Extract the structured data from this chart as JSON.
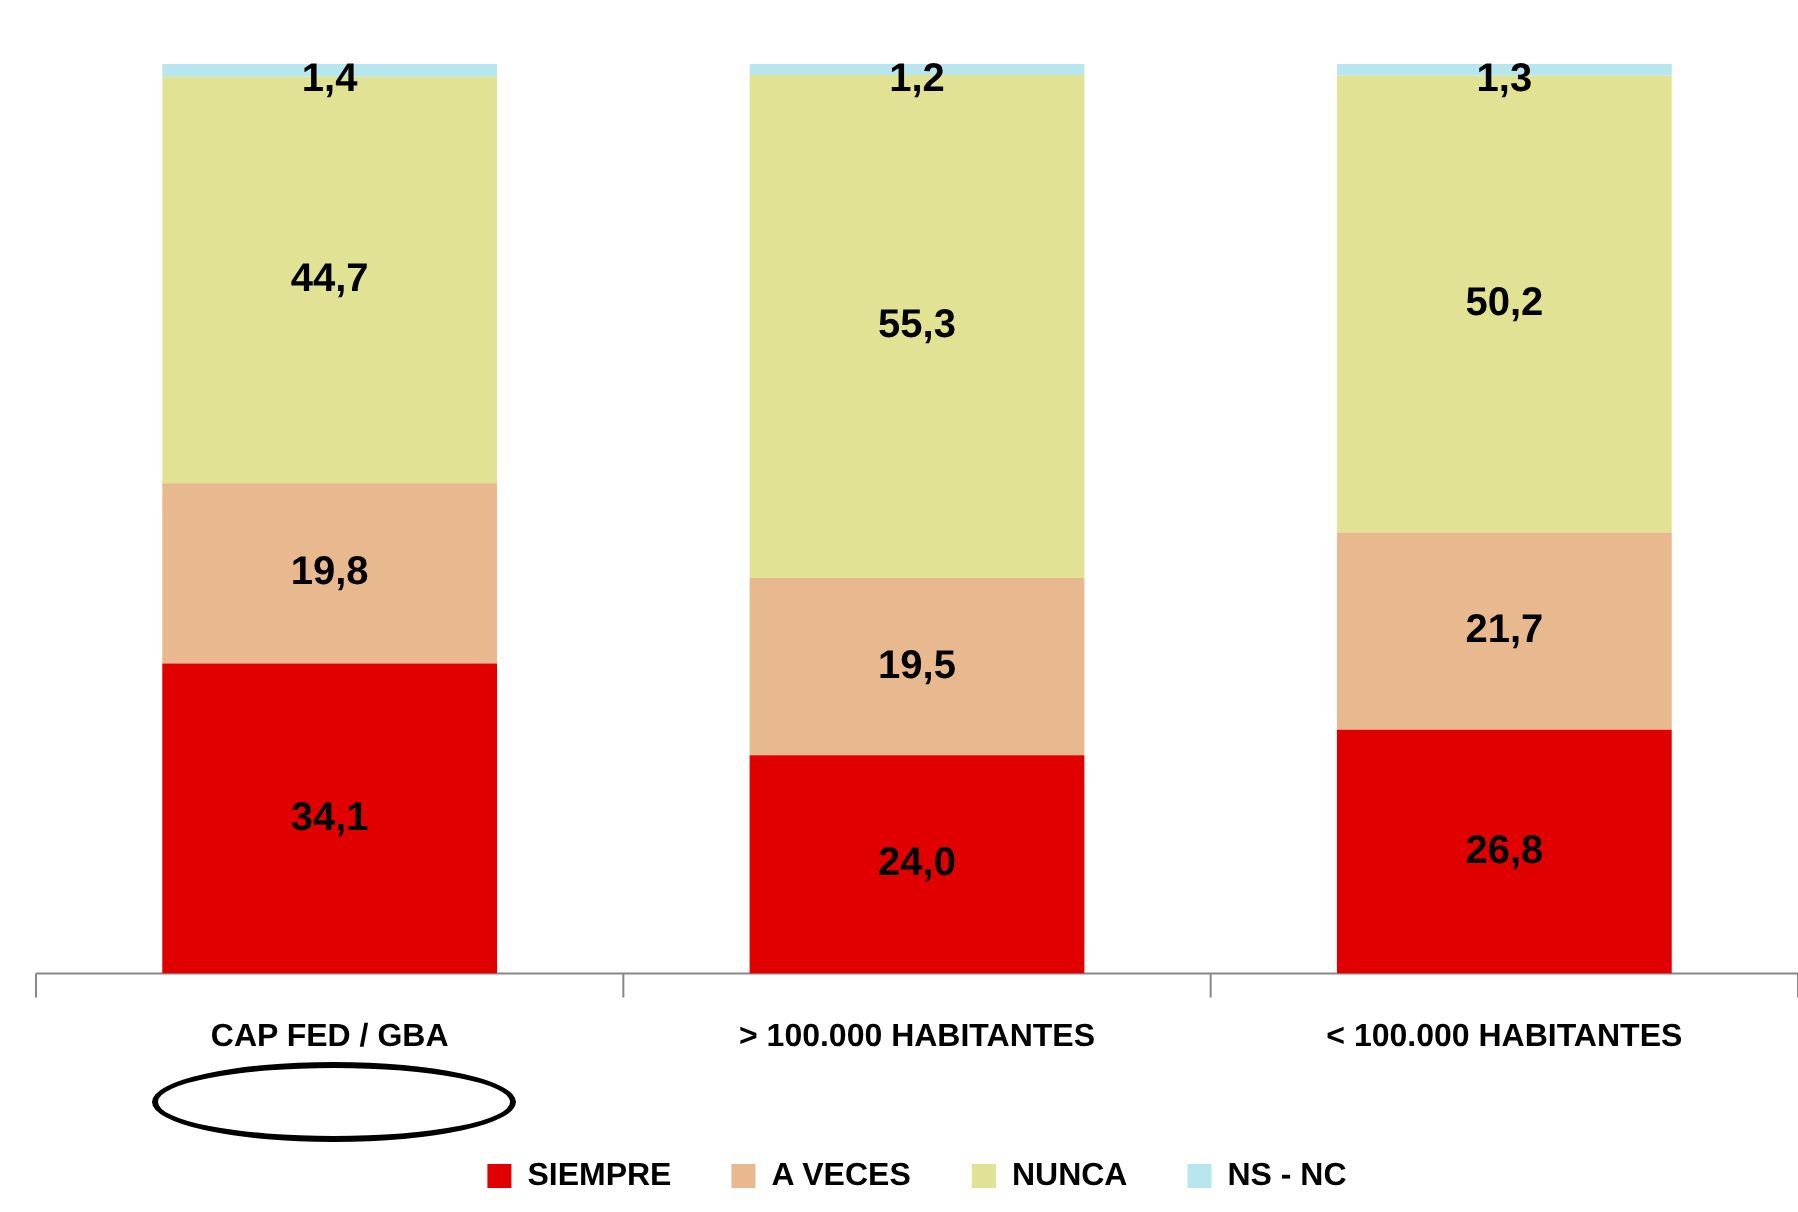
{
  "chart_data": {
    "type": "bar",
    "stacked": true,
    "categories": [
      "CAP FED / GBA",
      "> 100.000 HABITANTES",
      "< 100.000 HABITANTES"
    ],
    "series": [
      {
        "name": "SIEMPRE",
        "color": "#e00000",
        "values": [
          34.1,
          24.0,
          26.8
        ],
        "value_labels": [
          "34,1",
          "24,0",
          "26,8"
        ]
      },
      {
        "name": "A VECES",
        "color": "#e8b88e",
        "values": [
          19.8,
          19.5,
          21.7
        ],
        "value_labels": [
          "19,8",
          "19,5",
          "21,7"
        ]
      },
      {
        "name": "NUNCA",
        "color": "#e2e294",
        "values": [
          44.7,
          55.3,
          50.2
        ],
        "value_labels": [
          "44,7",
          "55,3",
          "50,2"
        ]
      },
      {
        "name": "NS - NC",
        "color": "#b8e6ee",
        "values": [
          1.4,
          1.2,
          1.3
        ],
        "value_labels": [
          "1,4",
          "1,2",
          "1,3"
        ]
      }
    ],
    "ylim": [
      0,
      100
    ],
    "tick_labels": "x",
    "grid": false,
    "legend": "bottom"
  }
}
